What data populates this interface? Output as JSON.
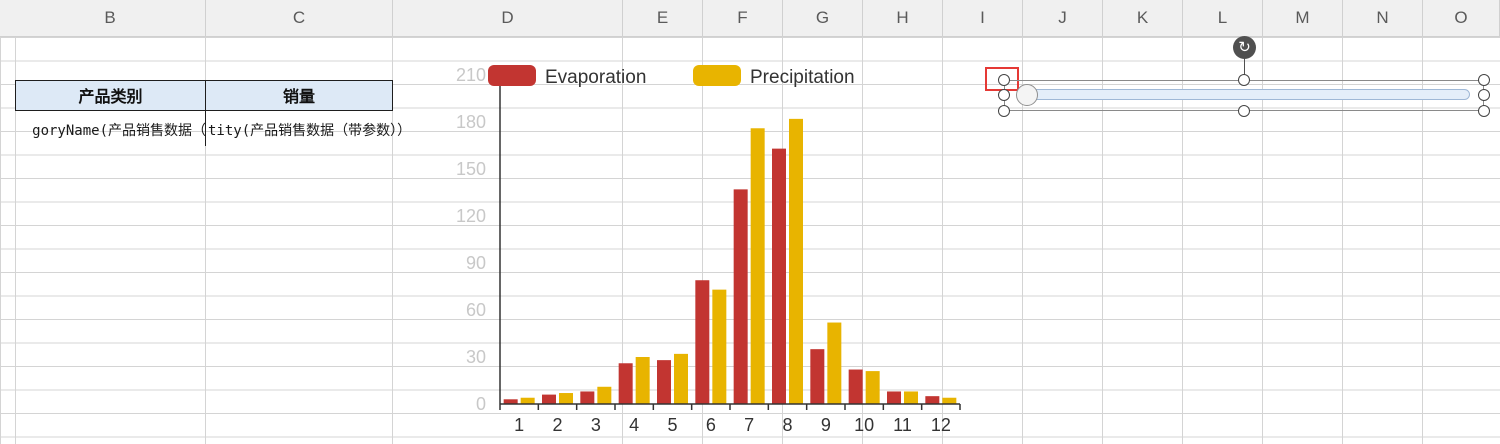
{
  "column_headers": [
    "B",
    "C",
    "D",
    "E",
    "F",
    "G",
    "H",
    "I",
    "J",
    "K",
    "L",
    "M",
    "N",
    "O"
  ],
  "table": {
    "header_category": "产品类别",
    "header_sales": "销量",
    "formula_category": "goryName(产品销售数据（",
    "formula_sales": "tity(产品销售数据（带参数））"
  },
  "chart_data": {
    "type": "bar",
    "title": "",
    "xlabel": "",
    "ylabel": "",
    "categories": [
      "1",
      "2",
      "3",
      "4",
      "5",
      "6",
      "7",
      "8",
      "9",
      "10",
      "11",
      "12"
    ],
    "series": [
      {
        "name": "Evaporation",
        "color": "#c23531",
        "values": [
          3,
          6,
          8,
          26,
          28,
          79,
          137,
          163,
          35,
          22,
          8,
          5
        ]
      },
      {
        "name": "Precipitation",
        "color": "#e8b400",
        "values": [
          4,
          7,
          11,
          30,
          32,
          73,
          176,
          182,
          52,
          21,
          8,
          4
        ]
      }
    ],
    "ylim": [
      0,
      210
    ],
    "yticks": [
      0,
      30,
      60,
      90,
      120,
      150,
      180,
      210
    ],
    "grid": false,
    "legend_position": "top-left"
  },
  "slider": {
    "value_fraction": 0.0,
    "selected": true
  },
  "colors": {
    "header_fill": "#dde9f6",
    "selection_marker": "#e53935"
  },
  "icons": {
    "rotate_handle": "rotate-icon"
  }
}
